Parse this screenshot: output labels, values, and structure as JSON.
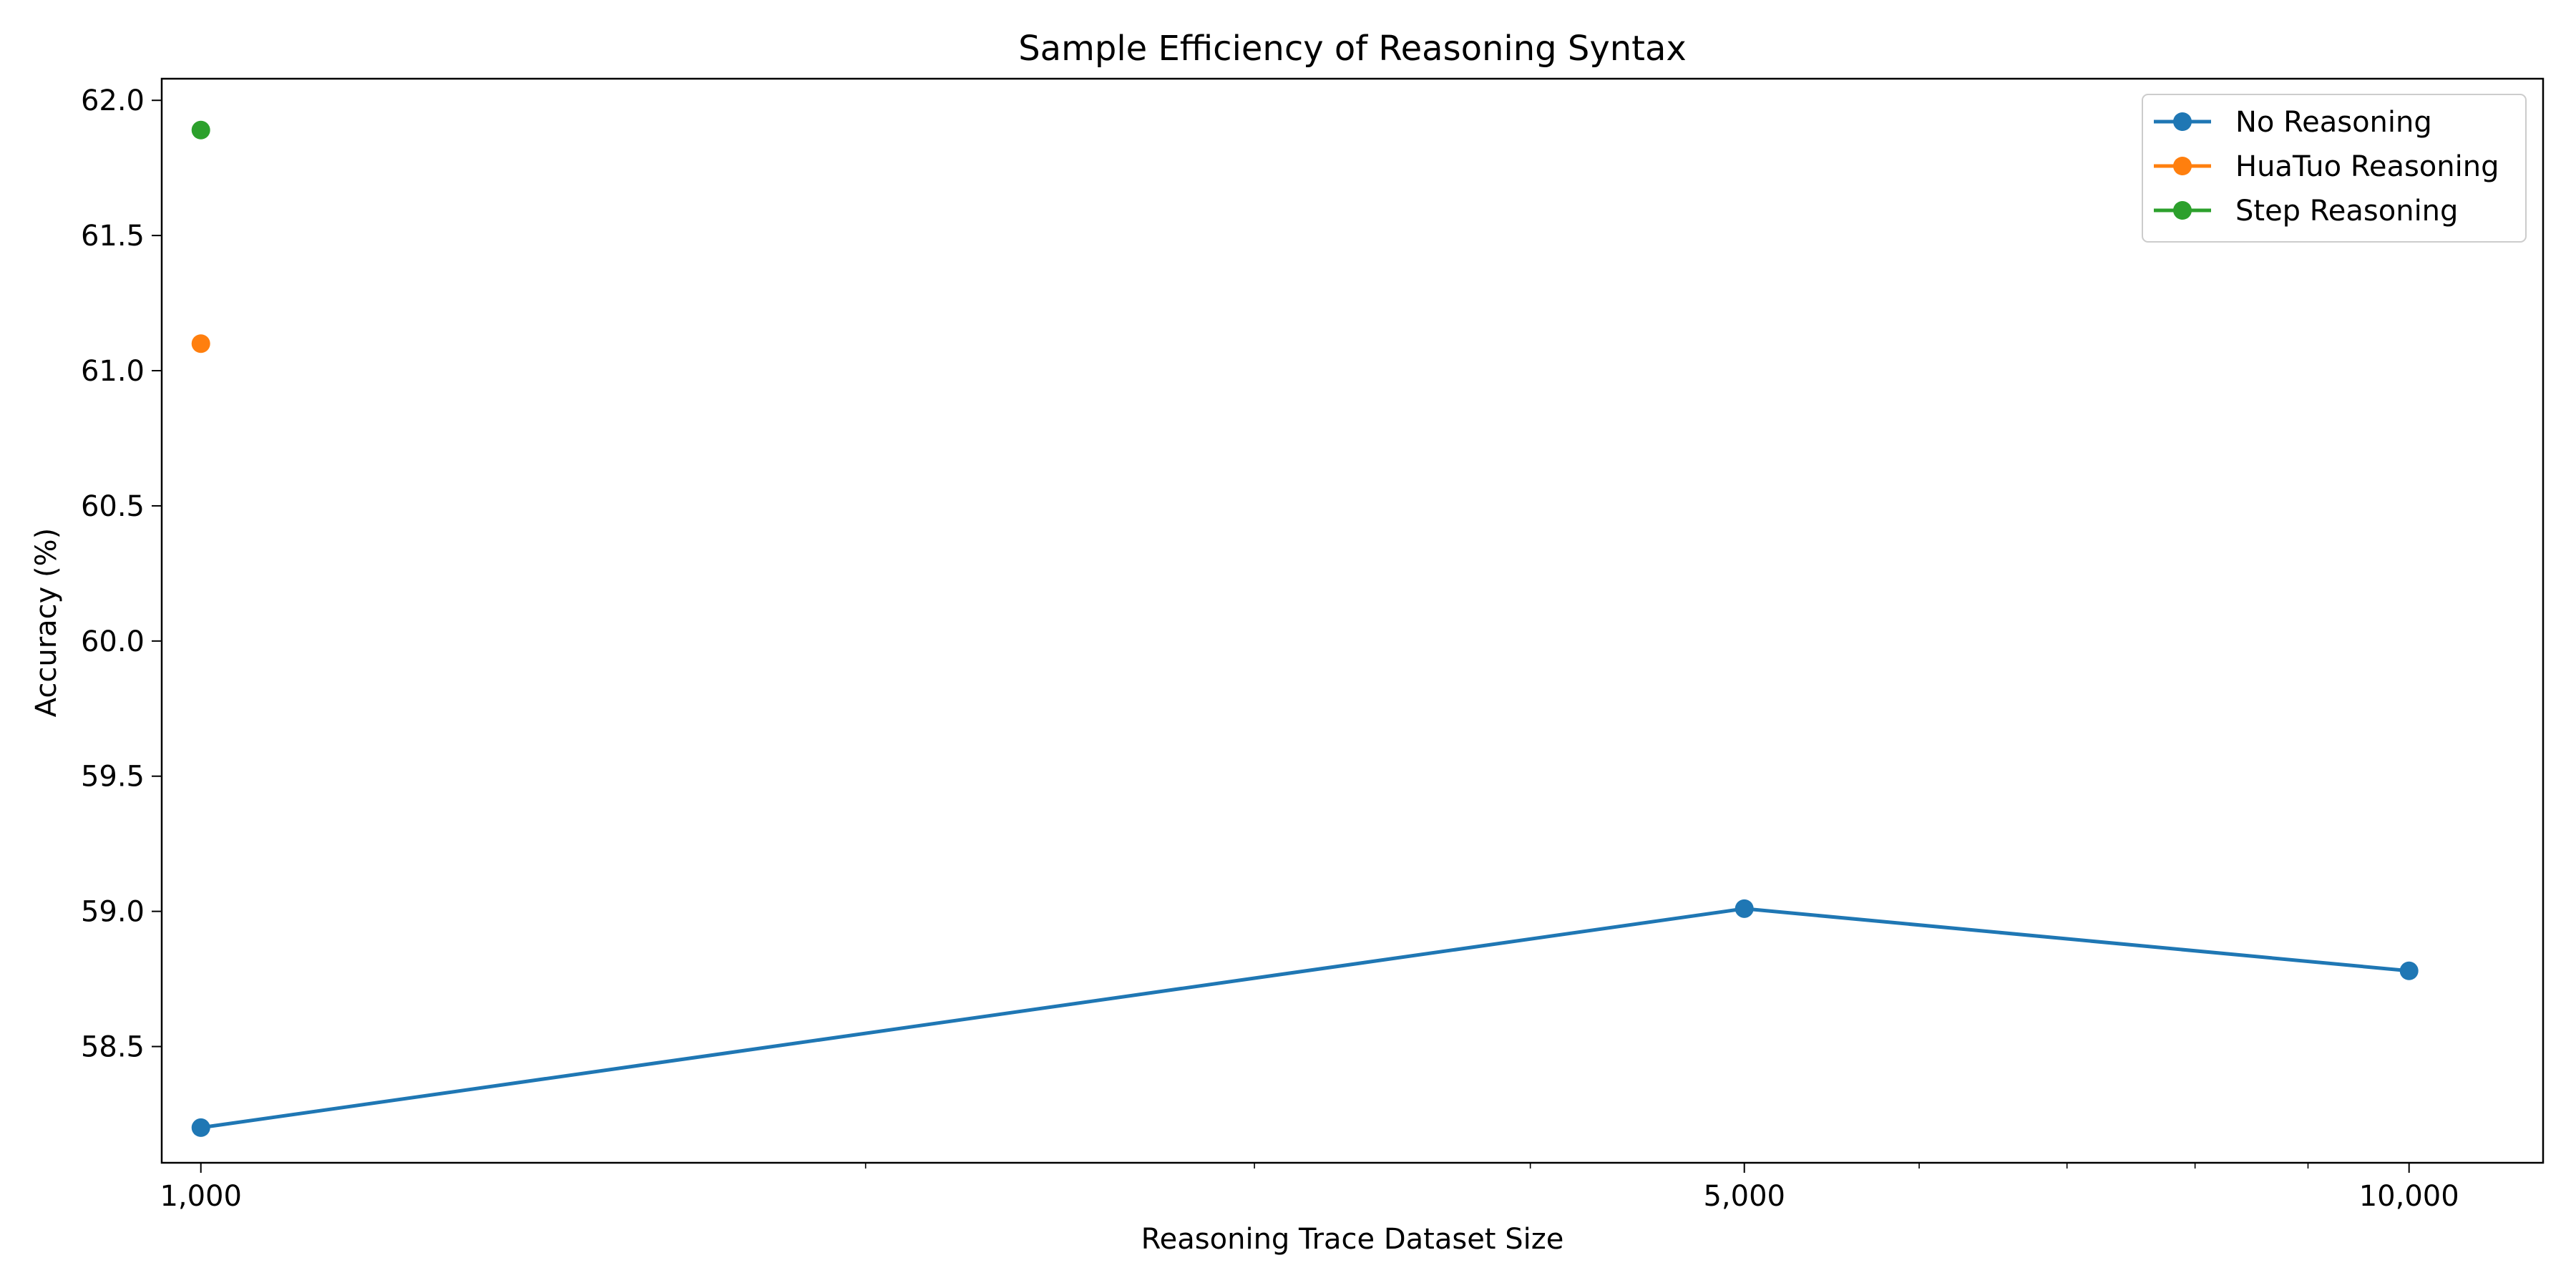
{
  "chart_data": {
    "type": "line",
    "title": "Sample Efficiency of Reasoning Syntax",
    "xlabel": "Reasoning Trace Dataset Size",
    "ylabel": "Accuracy (%)",
    "x_scale": "log",
    "xlim": [
      960,
      11500
    ],
    "ylim": [
      58.07,
      62.08
    ],
    "x_ticks": [
      {
        "value": 1000,
        "label": "1,000"
      },
      {
        "value": 5000,
        "label": "5,000"
      },
      {
        "value": 10000,
        "label": "10,000"
      }
    ],
    "y_ticks": [
      {
        "value": 58.5,
        "label": "58.5"
      },
      {
        "value": 59.0,
        "label": "59.0"
      },
      {
        "value": 59.5,
        "label": "59.5"
      },
      {
        "value": 60.0,
        "label": "60.0"
      },
      {
        "value": 60.5,
        "label": "60.5"
      },
      {
        "value": 61.0,
        "label": "61.0"
      },
      {
        "value": 61.5,
        "label": "61.5"
      },
      {
        "value": 62.0,
        "label": "62.0"
      }
    ],
    "grid": false,
    "legend_position": "top-right",
    "series": [
      {
        "name": "No Reasoning",
        "color": "#1f77b4",
        "x": [
          1000,
          5000,
          10000
        ],
        "y": [
          58.2,
          59.01,
          58.78
        ]
      },
      {
        "name": "HuaTuo Reasoning",
        "color": "#ff7f0e",
        "x": [
          1000
        ],
        "y": [
          61.1
        ]
      },
      {
        "name": "Step Reasoning",
        "color": "#2ca02c",
        "x": [
          1000
        ],
        "y": [
          61.89
        ]
      }
    ]
  }
}
